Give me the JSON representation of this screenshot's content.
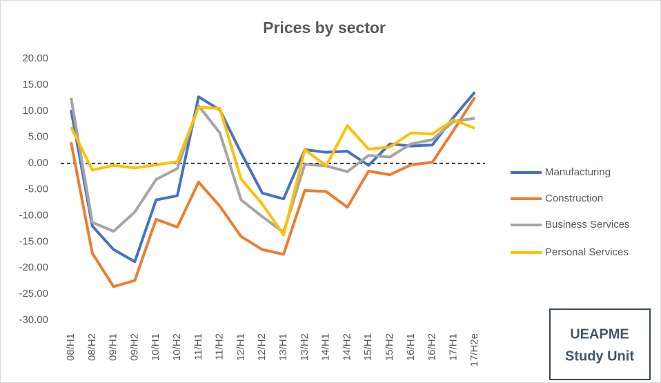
{
  "chart_data": {
    "type": "line",
    "title": "Prices by sector",
    "categories": [
      "08/H1",
      "08/H2",
      "09/H1",
      "09/H2",
      "10/H1",
      "10/H2",
      "11/H1",
      "11/H2",
      "12/H1",
      "12/H2",
      "13/H1",
      "13/H2",
      "14/H1",
      "14/H2",
      "15/H1",
      "15/H2",
      "16/H1",
      "16/H2",
      "17/H1",
      "17/H2e"
    ],
    "series": [
      {
        "name": "Manufacturing",
        "color": "#4472c4",
        "values": [
          10.2,
          -12,
          -16.5,
          -18.8,
          -7,
          -6.2,
          12.7,
          10.2,
          2,
          -5.7,
          -6.8,
          2.6,
          2.1,
          2.3,
          -0.4,
          3.7,
          3.3,
          3.5,
          8.8,
          13.6
        ]
      },
      {
        "name": "Construction",
        "color": "#ed7d31",
        "values": [
          4,
          -17.2,
          -23.6,
          -22.4,
          -10.7,
          -12.2,
          -3.6,
          -8.2,
          -14,
          -16.5,
          -17.4,
          -5.2,
          -5.4,
          -8.4,
          -1.5,
          -2.2,
          -0.3,
          0.2,
          6.3,
          12.6
        ]
      },
      {
        "name": "Business Services",
        "color": "#a5a5a5",
        "values": [
          12.5,
          -11.3,
          -13,
          -9.3,
          -3.1,
          -1,
          11,
          5.8,
          -7,
          -10.2,
          -13.2,
          -0.2,
          -0.5,
          -1.6,
          1.5,
          1.2,
          3.7,
          4.5,
          8,
          8.6
        ]
      },
      {
        "name": "Personal Services",
        "color": "#ffc000",
        "values": [
          6.9,
          -1.3,
          -0.4,
          -0.9,
          -0.3,
          0.3,
          10.7,
          10.5,
          -3,
          -7.8,
          -13.7,
          2.6,
          -0.5,
          7.2,
          2.7,
          3.1,
          5.8,
          5.6,
          8.3,
          6.7
        ]
      }
    ],
    "ylim": [
      -30,
      20
    ],
    "yticks": [
      {
        "value": -30,
        "label": "-30.00"
      },
      {
        "value": -25,
        "label": "-25.00"
      },
      {
        "value": -20,
        "label": "-20.00"
      },
      {
        "value": -15,
        "label": "-15.00"
      },
      {
        "value": -10,
        "label": "-10.00"
      },
      {
        "value": -5,
        "label": "-5.00"
      },
      {
        "value": 0,
        "label": "0.00"
      },
      {
        "value": 5,
        "label": "5.00"
      },
      {
        "value": 10,
        "label": "10.00"
      },
      {
        "value": 15,
        "label": "15.00"
      },
      {
        "value": 20,
        "label": "20.00"
      }
    ],
    "grid": false,
    "zero_line": true,
    "legend": "right",
    "annotation": [
      "UEAPME",
      "Study Unit"
    ]
  }
}
